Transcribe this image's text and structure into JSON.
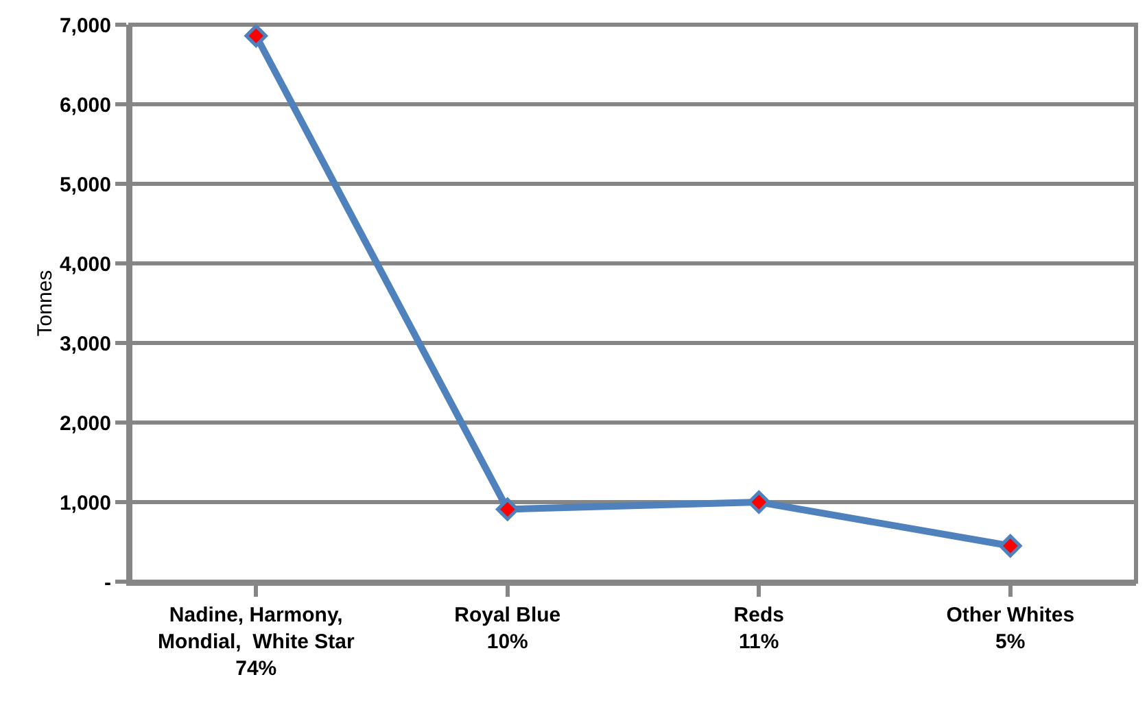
{
  "chart_data": {
    "type": "line",
    "ylabel": "Tonnes",
    "categories": [
      "Nadine, Harmony,\nMondial,  White Star\n74%",
      "Royal Blue\n10%",
      "Reds\n11%",
      "Other Whites\n5%"
    ],
    "series": [
      {
        "color": "#4f81bd",
        "colors": [
          "#ff0000",
          "#ff0000",
          "#ff0000",
          "#ff0000"
        ],
        "values": [
          6860,
          910,
          1000,
          450
        ]
      }
    ],
    "ylim": [
      0,
      7000
    ],
    "yticks": [
      {
        "value": 0,
        "label": "-"
      },
      {
        "value": 1000,
        "label": "1,000"
      },
      {
        "value": 2000,
        "label": "2,000"
      },
      {
        "value": 3000,
        "label": "3,000"
      },
      {
        "value": 4000,
        "label": "4,000"
      },
      {
        "value": 5000,
        "label": "5,000"
      },
      {
        "value": 6000,
        "label": "6,000"
      },
      {
        "value": 7000,
        "label": "7,000"
      }
    ],
    "grid": "y",
    "marker": "diamond",
    "line_style": "solid",
    "legend": false
  }
}
